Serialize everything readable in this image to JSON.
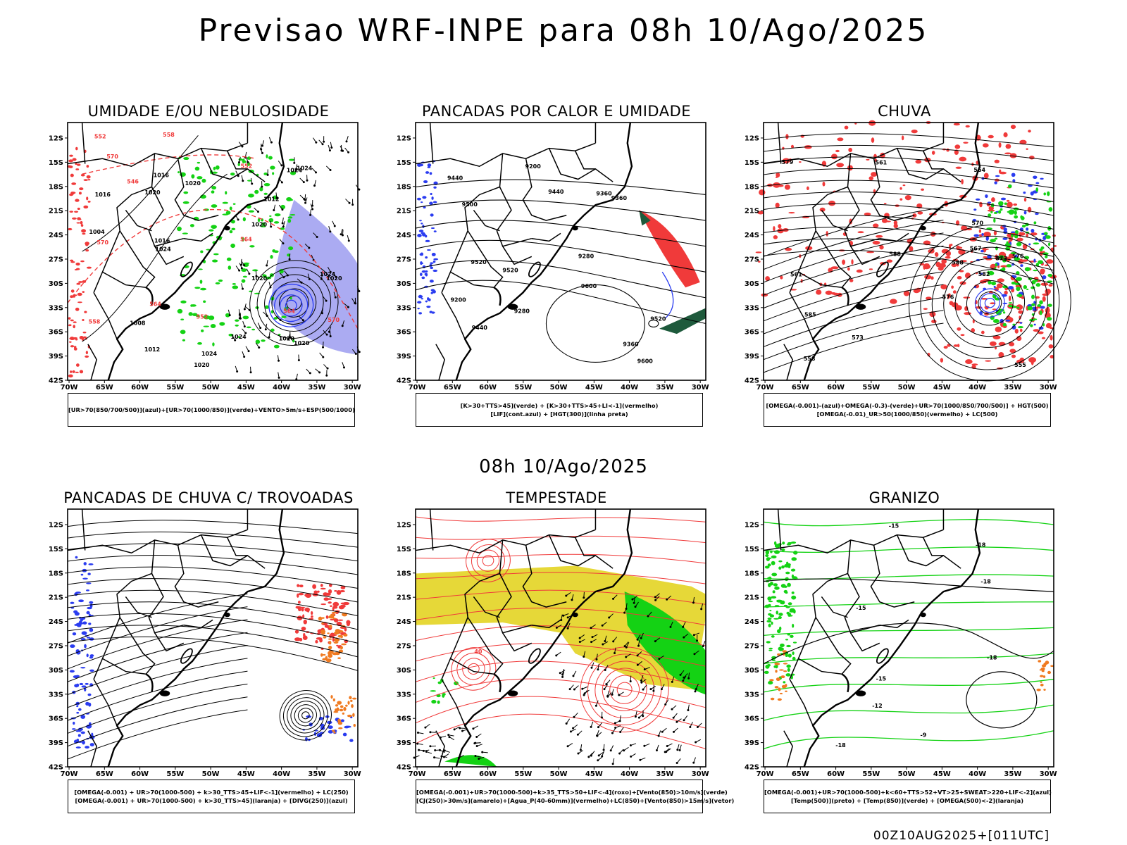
{
  "title": "Previsao WRF-INPE  para 08h 10/Ago/2025",
  "middle_title": "08h 10/Ago/2025",
  "footer": "00Z10AUG2025+[011UTC]",
  "axes": {
    "lat_ticks": [
      "12S",
      "15S",
      "18S",
      "21S",
      "24S",
      "27S",
      "30S",
      "33S",
      "36S",
      "39S",
      "42S"
    ],
    "lon_ticks": [
      "70W",
      "65W",
      "60W",
      "55W",
      "50W",
      "45W",
      "40W",
      "35W",
      "30W"
    ]
  },
  "colors": {
    "blue": "#2a3cf0",
    "green": "#14d214",
    "red": "#f03a3a",
    "orange": "#f07a20",
    "yellow": "#e6d838",
    "dark_green": "#1e5a3c",
    "lavender": "#9c9cf0"
  },
  "panels": [
    {
      "id": "umidade",
      "title": "UMIDADE E/OU NEBULOSIDADE",
      "legend": [
        "[UR>70(850/700/500)](azul)+[UR>70(1000/850)](verde)+VENTO>5m/s+ESP(500/1000)"
      ],
      "contour_labels": [
        "1016",
        "1020",
        "1020",
        "1024",
        "1024",
        "1020",
        "1020",
        "1024",
        "1024",
        "1020",
        "1024",
        "1016",
        "1012",
        "1008",
        "1004",
        "1012",
        "1016",
        "1020",
        "1020",
        "1024",
        "1020",
        "570",
        "570",
        "564",
        "558",
        "552",
        "552",
        "564",
        "570",
        "558",
        "546",
        "552",
        "564"
      ]
    },
    {
      "id": "pancadas-calor",
      "title": "PANCADAS POR CALOR E UMIDADE",
      "legend": [
        "[K>30+TTS>45](verde) + [K>30+TTS>45+LI<-1](vermelho)",
        "[LIF](cont.azul) + [HGT(300)](linha preta)"
      ],
      "contour_labels": [
        "9600",
        "9520",
        "9600",
        "9440",
        "9520",
        "9500",
        "9440",
        "9520",
        "9360",
        "9440",
        "9360",
        "9360",
        "9280",
        "9200",
        "9280",
        "9200"
      ]
    },
    {
      "id": "chuva",
      "title": "CHUVA",
      "legend": [
        "[OMEGA(-0.001)-(azul)+OMEGA(-0.3)-(verde)+UR>70(1000/850/700/500)] + HGT(500)",
        "[OMEGA(-0.01)_UR>50(1000/850)(vermelho) + LC(500)"
      ],
      "contour_labels": [
        "588",
        "585",
        "582",
        "579",
        "576",
        "573",
        "567",
        "564",
        "561",
        "558",
        "555",
        "576",
        "573",
        "570",
        "561",
        "588"
      ]
    },
    {
      "id": "pancadas-trovoadas",
      "title": "PANCADAS DE CHUVA C/ TROVOADAS",
      "legend": [
        "[OMEGA(-0.001) + UR>70(1000-500) + k>30_TTS>45+LIF<-1](vermelho) + LC(250)",
        "[OMEGA(-0.001) + UR>70(1000-500) + k>30_TTS>45](laranja) + [DIVG(250)](azul)"
      ],
      "contour_labels": []
    },
    {
      "id": "tempestade",
      "title": "TEMPESTADE",
      "legend": [
        "[OMEGA(-0.001)+UR>70(1000-500)+k>35_TTS>50+LIF<-4](roxo)+[Vento(850)>10m/s](verde)",
        "[CJ(250)>30m/s](amarelo)+[Agua_P(40-60mm)](vermelho)+LC(850)+[Vento(850)>15m/s](vetor)"
      ],
      "contour_labels": [
        "40"
      ]
    },
    {
      "id": "granizo",
      "title": "GRANIZO",
      "legend": [
        "[OMEGA(-0.001)+UR>70(1000-500)+k<60+TTS>52+VT>25+SWEAT>220+LIF<-2](azul)",
        "[Temp(500)](preto) + [Temp(850)](verde) + [OMEGA(500)<-2](laranja)"
      ],
      "contour_labels": [
        "-9",
        "-12",
        "-15",
        "-18",
        "-15",
        "-18",
        "-18",
        "-15",
        "-18"
      ]
    }
  ]
}
